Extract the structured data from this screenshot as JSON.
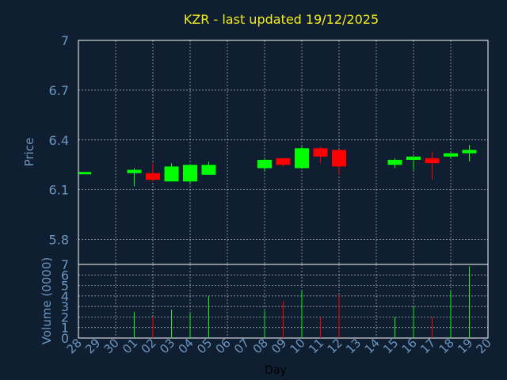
{
  "colors": {
    "background": "#0f1e30",
    "title": "#f4ee1c",
    "axis_text": "#6c96bf",
    "grid": "#ffffff",
    "up": "#00ff00",
    "down": "#ff0000"
  },
  "chart_data": {
    "type": "candlestick",
    "title": "KZR - last updated 19/12/2025",
    "xlabel": "Day",
    "price_panel": {
      "ylabel": "Price",
      "ylim": [
        5.65,
        7.0
      ],
      "yticks": [
        5.8,
        6.1,
        6.4,
        6.7,
        7
      ],
      "ytick_labels": [
        "5.8",
        "6.1",
        "6.4",
        "6.7",
        "7"
      ]
    },
    "volume_panel": {
      "ylabel": "Volume (0000)",
      "ylim": [
        0,
        7
      ],
      "yticks": [
        0,
        1,
        2,
        3,
        4,
        5,
        6,
        7
      ],
      "ytick_labels": [
        "0",
        "1",
        "2",
        "3",
        "4",
        "5",
        "6",
        "7"
      ]
    },
    "categories": [
      "28",
      "29",
      "30",
      "01",
      "02",
      "03",
      "04",
      "05",
      "06",
      "07",
      "08",
      "09",
      "10",
      "11",
      "12",
      "13",
      "14",
      "15",
      "16",
      "17",
      "18",
      "19",
      "20"
    ],
    "candles": [
      {
        "x": "28",
        "open": 6.2,
        "high": 6.2,
        "low": 6.2,
        "close": 6.2,
        "volume": 0
      },
      {
        "x": "01",
        "open": 6.2,
        "high": 6.23,
        "low": 6.12,
        "close": 6.22,
        "volume": 2.5
      },
      {
        "x": "02",
        "open": 6.2,
        "high": 6.26,
        "low": 6.15,
        "close": 6.16,
        "volume": 2.0
      },
      {
        "x": "03",
        "open": 6.15,
        "high": 6.26,
        "low": 6.15,
        "close": 6.24,
        "volume": 2.7
      },
      {
        "x": "04",
        "open": 6.15,
        "high": 6.25,
        "low": 6.14,
        "close": 6.25,
        "volume": 2.4
      },
      {
        "x": "05",
        "open": 6.19,
        "high": 6.27,
        "low": 6.19,
        "close": 6.25,
        "volume": 4.0
      },
      {
        "x": "08",
        "open": 6.23,
        "high": 6.29,
        "low": 6.21,
        "close": 6.28,
        "volume": 2.6
      },
      {
        "x": "09",
        "open": 6.29,
        "high": 6.29,
        "low": 6.24,
        "close": 6.25,
        "volume": 3.5
      },
      {
        "x": "10",
        "open": 6.23,
        "high": 6.36,
        "low": 6.23,
        "close": 6.35,
        "volume": 4.5
      },
      {
        "x": "11",
        "open": 6.35,
        "high": 6.36,
        "low": 6.26,
        "close": 6.3,
        "volume": 2.0
      },
      {
        "x": "12",
        "open": 6.34,
        "high": 6.34,
        "low": 6.19,
        "close": 6.24,
        "volume": 4.1
      },
      {
        "x": "15",
        "open": 6.25,
        "high": 6.29,
        "low": 6.23,
        "close": 6.28,
        "volume": 2.0
      },
      {
        "x": "16",
        "open": 6.28,
        "high": 6.3,
        "low": 6.22,
        "close": 6.3,
        "volume": 3.0
      },
      {
        "x": "17",
        "open": 6.29,
        "high": 6.33,
        "low": 6.16,
        "close": 6.26,
        "volume": 2.0
      },
      {
        "x": "18",
        "open": 6.3,
        "high": 6.32,
        "low": 6.29,
        "close": 6.32,
        "volume": 4.5
      },
      {
        "x": "19",
        "open": 6.32,
        "high": 6.37,
        "low": 6.27,
        "close": 6.34,
        "volume": 6.8
      }
    ],
    "grid": true
  }
}
